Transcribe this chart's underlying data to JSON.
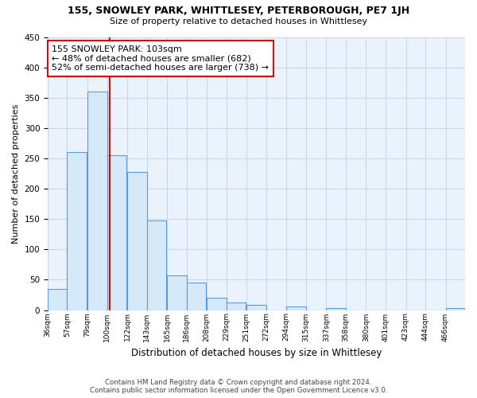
{
  "title": "155, SNOWLEY PARK, WHITTLESEY, PETERBOROUGH, PE7 1JH",
  "subtitle": "Size of property relative to detached houses in Whittlesey",
  "xlabel": "Distribution of detached houses by size in Whittlesey",
  "ylabel": "Number of detached properties",
  "bar_labels": [
    "36sqm",
    "57sqm",
    "79sqm",
    "100sqm",
    "122sqm",
    "143sqm",
    "165sqm",
    "186sqm",
    "208sqm",
    "229sqm",
    "251sqm",
    "272sqm",
    "294sqm",
    "315sqm",
    "337sqm",
    "358sqm",
    "380sqm",
    "401sqm",
    "423sqm",
    "444sqm",
    "466sqm"
  ],
  "bar_values": [
    35,
    260,
    360,
    255,
    228,
    148,
    57,
    45,
    20,
    13,
    8,
    0,
    6,
    0,
    3,
    0,
    0,
    0,
    0,
    0,
    3
  ],
  "bar_color": "#d6e9f8",
  "bar_edge_color": "#5b9bd5",
  "annotation_title": "155 SNOWLEY PARK: 103sqm",
  "annotation_line1": "← 48% of detached houses are smaller (682)",
  "annotation_line2": "52% of semi-detached houses are larger (738) →",
  "annotation_box_color": "#ffffff",
  "annotation_box_edge": "#cc0000",
  "vline_color": "#cc0000",
  "vline_x": 103,
  "ylim": [
    0,
    450
  ],
  "bin_width": 21,
  "footer_line1": "Contains HM Land Registry data © Crown copyright and database right 2024.",
  "footer_line2": "Contains public sector information licensed under the Open Government Licence v3.0.",
  "background_color": "#ffffff",
  "grid_color": "#c8d8e8",
  "plot_bg_color": "#eaf3fb"
}
